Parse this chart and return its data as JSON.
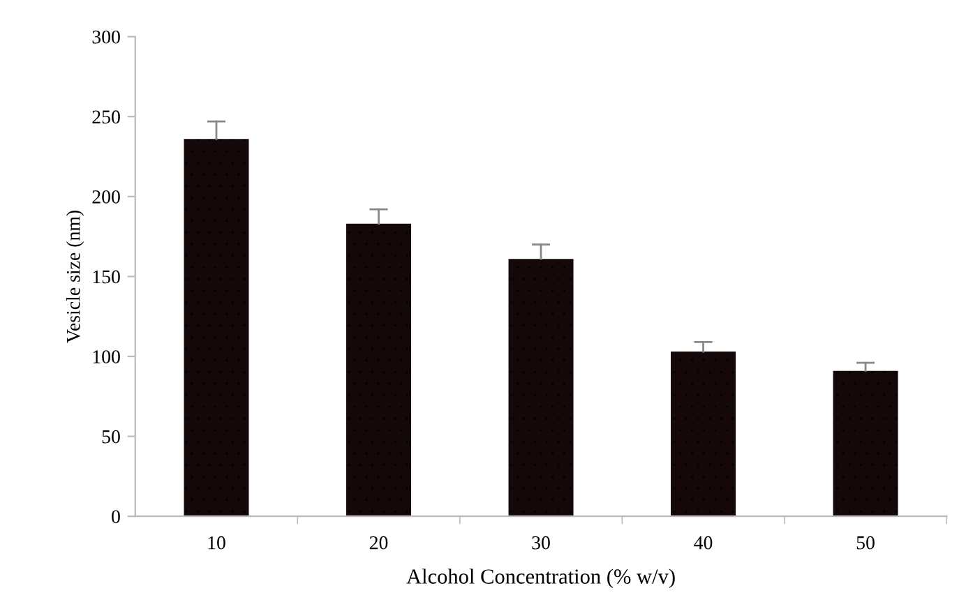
{
  "chart_data": {
    "type": "bar",
    "xlabel": "Alcohol Concentration (% w/v)",
    "ylabel": "Vesicle size (nm)",
    "categories": [
      "10",
      "20",
      "30",
      "40",
      "50"
    ],
    "values": [
      236,
      183,
      161,
      103,
      91
    ],
    "errors": [
      [
        236,
        247
      ],
      [
        183,
        192
      ],
      [
        161,
        170
      ],
      [
        103,
        109
      ],
      [
        91,
        96
      ]
    ],
    "color": "#140808",
    "ylim": [
      0,
      300
    ],
    "yticks": [
      0,
      50,
      100,
      150,
      200,
      250,
      300
    ],
    "grid": false,
    "legend": false
  }
}
